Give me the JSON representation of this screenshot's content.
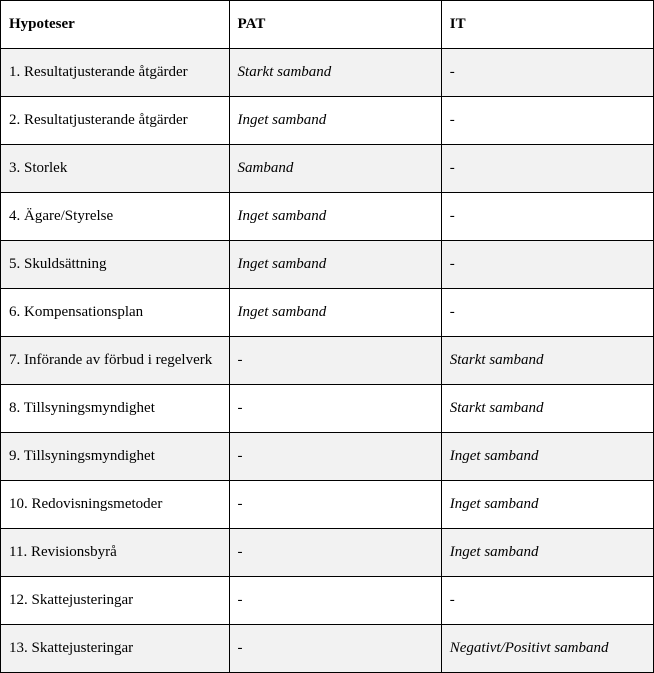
{
  "table": {
    "columns": [
      "Hypoteser",
      "PAT",
      "IT"
    ],
    "rows": [
      {
        "hypo": "1. Resultatjusterande åtgärder",
        "pat": "Starkt samband",
        "it": "-",
        "alt": true
      },
      {
        "hypo": "2. Resultatjusterande åtgärder",
        "pat": "Inget samband",
        "it": "-",
        "alt": false
      },
      {
        "hypo": "3. Storlek",
        "pat": "Samband",
        "it": "-",
        "alt": true
      },
      {
        "hypo": "4. Ägare/Styrelse",
        "pat": "Inget samband",
        "it": "-",
        "alt": false
      },
      {
        "hypo": "5. Skuldsättning",
        "pat": "Inget samband",
        "it": "-",
        "alt": true
      },
      {
        "hypo": "6. Kompensationsplan",
        "pat": "Inget samband",
        "it": "-",
        "alt": false
      },
      {
        "hypo": "7. Införande av förbud i regelverk",
        "pat": "-",
        "it": "Starkt samband",
        "alt": true
      },
      {
        "hypo": "8. Tillsyningsmyndighet",
        "pat": "-",
        "it": "Starkt samband",
        "alt": false
      },
      {
        "hypo": "9. Tillsyningsmyndighet",
        "pat": "-",
        "it": "Inget samband",
        "alt": true
      },
      {
        "hypo": "10. Redovisningsmetoder",
        "pat": "-",
        "it": "Inget samband",
        "alt": false
      },
      {
        "hypo": "11. Revisionsbyrå",
        "pat": "-",
        "it": "Inget samband",
        "alt": true
      },
      {
        "hypo": "12. Skattejusteringar",
        "pat": "-",
        "it": "-",
        "alt": false
      },
      {
        "hypo": "13. Skattejusteringar",
        "pat": "-",
        "it": "Negativt/Positivt samband",
        "alt": true
      }
    ],
    "colors": {
      "border": "#000000",
      "background": "#ffffff",
      "alt_background": "#f2f2f2",
      "text": "#000000"
    },
    "font": {
      "family": "Times New Roman",
      "size_pt": 11,
      "header_weight": "bold",
      "value_style": "italic"
    }
  }
}
